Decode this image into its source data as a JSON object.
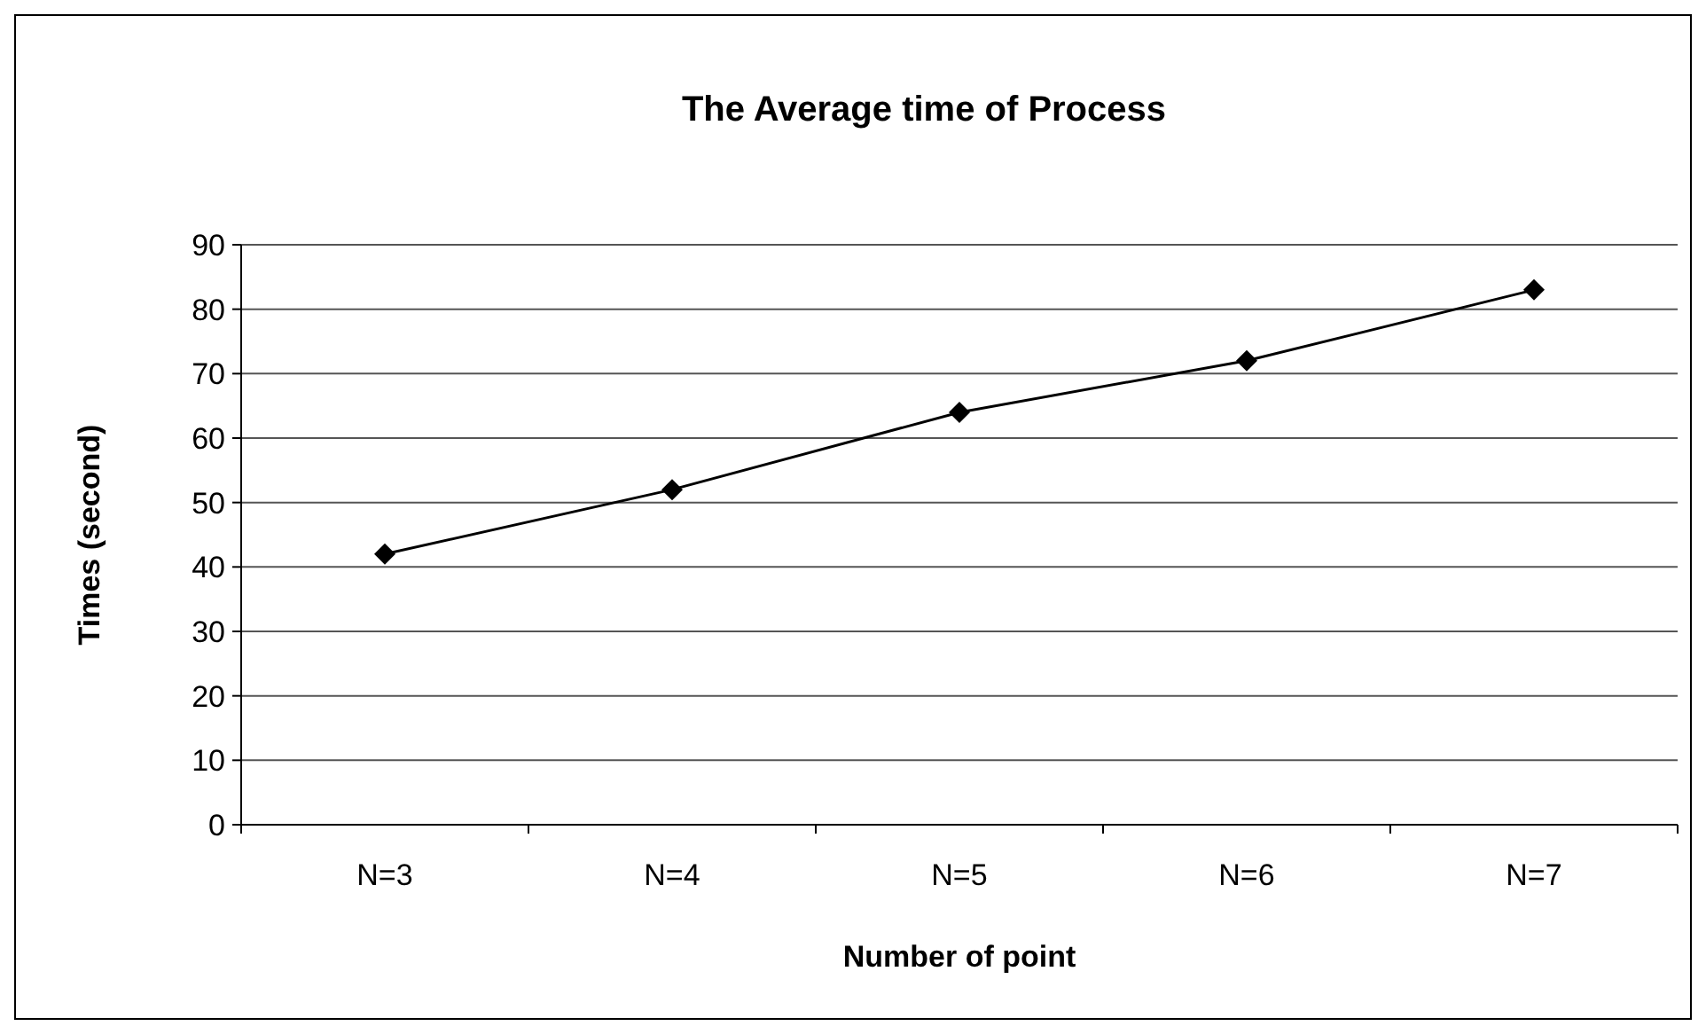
{
  "chart_data": {
    "type": "line",
    "title": "The Average time of Process",
    "xlabel": "Number of point",
    "ylabel": "Times (second)",
    "categories": [
      "N=3",
      "N=4",
      "N=5",
      "N=6",
      "N=7"
    ],
    "series": [
      {
        "color": "#000000",
        "values": [
          42,
          52,
          64,
          72,
          83
        ]
      }
    ],
    "ylim": [
      0,
      90
    ],
    "yticks": [
      0,
      10,
      20,
      30,
      40,
      50,
      60,
      70,
      80,
      90
    ],
    "grid": "y",
    "marker": "diamond",
    "line_style": "solid"
  }
}
